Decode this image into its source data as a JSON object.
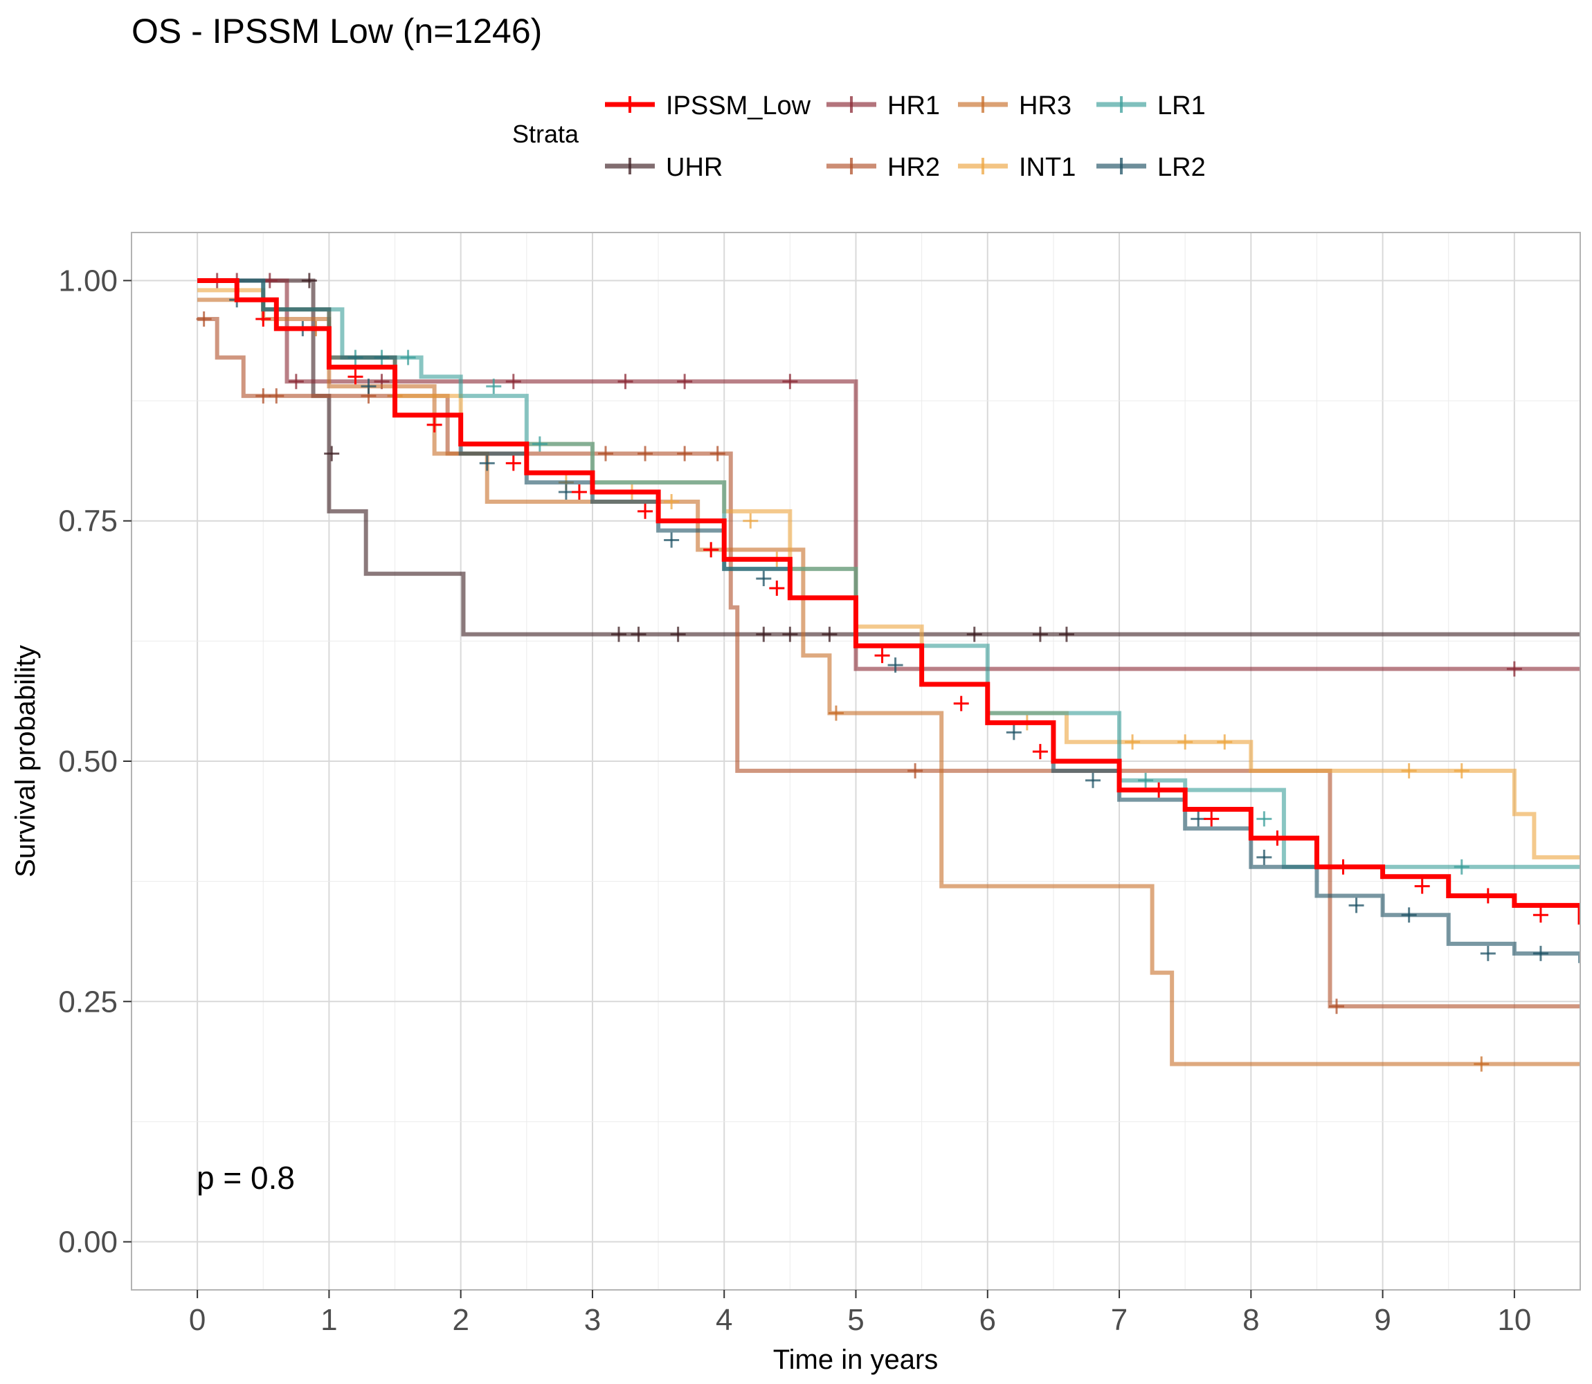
{
  "chart_data": {
    "type": "line",
    "subtype": "kaplan-meier step",
    "title": "OS - IPSSM Low (n=1246)",
    "xlabel": "Time in years",
    "ylabel": "Survival probability",
    "xlim": [
      -0.5,
      10.5
    ],
    "ylim": [
      -0.05,
      1.05
    ],
    "x_ticks": [
      0,
      1,
      2,
      3,
      4,
      5,
      6,
      7,
      8,
      9,
      10
    ],
    "y_ticks": [
      0,
      0.25,
      0.5,
      0.75,
      1.0
    ],
    "y_tick_labels": [
      "0.00",
      "0.25",
      "0.50",
      "0.75",
      "1.00"
    ],
    "grid": true,
    "legend_title": "Strata",
    "legend_position": "top",
    "annotation": "p = 0.8",
    "series": [
      {
        "name": "IPSSM_Low",
        "color": "#ff0000",
        "x": [
          0,
          0.3,
          0.6,
          1.0,
          1.5,
          2.0,
          2.5,
          3.0,
          3.5,
          4.0,
          4.5,
          5.0,
          5.5,
          6.0,
          6.5,
          7.0,
          7.5,
          8.0,
          8.5,
          9.0,
          9.5,
          10.0,
          10.5
        ],
        "y": [
          1.0,
          0.98,
          0.95,
          0.91,
          0.86,
          0.83,
          0.8,
          0.78,
          0.75,
          0.71,
          0.67,
          0.62,
          0.58,
          0.54,
          0.5,
          0.47,
          0.45,
          0.42,
          0.39,
          0.38,
          0.36,
          0.35,
          0.33
        ],
        "censor_x": [
          0.5,
          1.2,
          1.8,
          2.4,
          2.9,
          3.4,
          3.9,
          4.4,
          5.2,
          5.8,
          6.4,
          7.3,
          7.7,
          8.2,
          8.7,
          9.3,
          9.8,
          10.2
        ],
        "censor_y": [
          0.96,
          0.9,
          0.85,
          0.81,
          0.78,
          0.76,
          0.72,
          0.68,
          0.61,
          0.56,
          0.51,
          0.47,
          0.44,
          0.42,
          0.39,
          0.37,
          0.36,
          0.34
        ]
      },
      {
        "name": "UHR",
        "color": "#3d1f23",
        "x": [
          0,
          0.88,
          1.0,
          1.28,
          2.02,
          10.5
        ],
        "y": [
          1.0,
          0.88,
          0.76,
          0.695,
          0.632,
          0.632
        ],
        "censor_x": [
          0.85,
          1.02,
          3.2,
          3.35,
          3.65,
          4.3,
          4.5,
          4.8,
          5.9,
          6.4,
          6.6
        ],
        "censor_y": [
          1.0,
          0.82,
          0.632,
          0.632,
          0.632,
          0.632,
          0.632,
          0.632,
          0.632,
          0.632,
          0.632
        ]
      },
      {
        "name": "HR1",
        "color": "#8b2a36",
        "x": [
          0,
          0.68,
          5.0,
          10.5
        ],
        "y": [
          1.0,
          0.895,
          0.596,
          0.596
        ],
        "censor_x": [
          0.15,
          0.3,
          0.55,
          0.75,
          1.4,
          2.4,
          3.25,
          3.7,
          4.5,
          10.0
        ],
        "censor_y": [
          1.0,
          1.0,
          1.0,
          0.895,
          0.895,
          0.895,
          0.895,
          0.895,
          0.895,
          0.596
        ]
      },
      {
        "name": "HR2",
        "color": "#b0502a",
        "x": [
          0,
          0.15,
          0.35,
          1.0,
          1.9,
          4.05,
          4.1,
          8.6,
          10.5
        ],
        "y": [
          0.96,
          0.92,
          0.88,
          0.88,
          0.82,
          0.66,
          0.49,
          0.245,
          0.245
        ],
        "censor_x": [
          0.05,
          0.5,
          0.6,
          1.3,
          3.1,
          3.4,
          3.7,
          3.95,
          5.45,
          8.65
        ],
        "censor_y": [
          0.96,
          0.88,
          0.88,
          0.88,
          0.82,
          0.82,
          0.82,
          0.82,
          0.49,
          0.245
        ]
      },
      {
        "name": "HR3",
        "color": "#c86f2a",
        "x": [
          0,
          0.5,
          1.0,
          1.8,
          2.2,
          3.8,
          4.6,
          4.8,
          5.65,
          7.25,
          7.4,
          10.5
        ],
        "y": [
          0.98,
          0.96,
          0.89,
          0.82,
          0.77,
          0.72,
          0.61,
          0.55,
          0.37,
          0.28,
          0.185,
          0.185
        ],
        "censor_x": [
          0.9,
          1.5,
          3.9,
          4.85,
          9.75
        ],
        "censor_y": [
          0.95,
          0.88,
          0.72,
          0.55,
          0.185
        ]
      },
      {
        "name": "INT1",
        "color": "#eda540",
        "x": [
          0,
          0.5,
          1.0,
          1.5,
          2.0,
          3.0,
          4.0,
          4.5,
          5.0,
          5.5,
          6.0,
          6.6,
          8.0,
          10.0,
          10.15,
          10.5
        ],
        "y": [
          0.99,
          0.97,
          0.92,
          0.88,
          0.83,
          0.79,
          0.76,
          0.7,
          0.64,
          0.58,
          0.55,
          0.52,
          0.49,
          0.445,
          0.4,
          0.4
        ],
        "censor_x": [
          2.8,
          3.3,
          3.6,
          4.2,
          4.4,
          6.3,
          7.1,
          7.5,
          7.8,
          9.2,
          9.6
        ],
        "censor_y": [
          0.79,
          0.78,
          0.77,
          0.75,
          0.71,
          0.54,
          0.52,
          0.52,
          0.52,
          0.49,
          0.49
        ]
      },
      {
        "name": "LR1",
        "color": "#3a9e9a",
        "x": [
          0,
          0.5,
          1.1,
          1.7,
          2.0,
          2.5,
          3.0,
          4.0,
          5.0,
          6.0,
          7.0,
          7.5,
          8.25,
          10.5
        ],
        "y": [
          1.0,
          0.97,
          0.92,
          0.9,
          0.88,
          0.83,
          0.79,
          0.7,
          0.62,
          0.55,
          0.48,
          0.47,
          0.39,
          0.39
        ],
        "censor_x": [
          1.2,
          1.4,
          1.6,
          2.25,
          2.6,
          7.2,
          8.1,
          9.6
        ],
        "censor_y": [
          0.92,
          0.92,
          0.92,
          0.89,
          0.83,
          0.48,
          0.44,
          0.39
        ]
      },
      {
        "name": "LR2",
        "color": "#1e5264",
        "x": [
          0,
          0.5,
          1.0,
          1.5,
          2.0,
          2.5,
          3.0,
          3.5,
          4.0,
          4.5,
          5.0,
          5.5,
          6.0,
          6.5,
          7.0,
          7.5,
          8.0,
          8.5,
          9.0,
          9.5,
          10.0,
          10.5
        ],
        "y": [
          1.0,
          0.97,
          0.92,
          0.86,
          0.82,
          0.79,
          0.77,
          0.74,
          0.7,
          0.67,
          0.62,
          0.58,
          0.54,
          0.49,
          0.46,
          0.43,
          0.39,
          0.36,
          0.34,
          0.31,
          0.3,
          0.29
        ],
        "censor_x": [
          0.3,
          0.8,
          1.3,
          2.2,
          2.8,
          3.6,
          4.3,
          5.3,
          6.2,
          6.8,
          7.6,
          8.1,
          8.8,
          9.2,
          9.8,
          10.2
        ],
        "censor_y": [
          0.98,
          0.95,
          0.89,
          0.81,
          0.78,
          0.73,
          0.69,
          0.6,
          0.53,
          0.48,
          0.44,
          0.4,
          0.35,
          0.34,
          0.3,
          0.3
        ]
      }
    ]
  },
  "legend_layout": [
    [
      "IPSSM_Low",
      "HR1",
      "HR3",
      "LR1"
    ],
    [
      "UHR",
      "HR2",
      "INT1",
      "LR2"
    ]
  ]
}
